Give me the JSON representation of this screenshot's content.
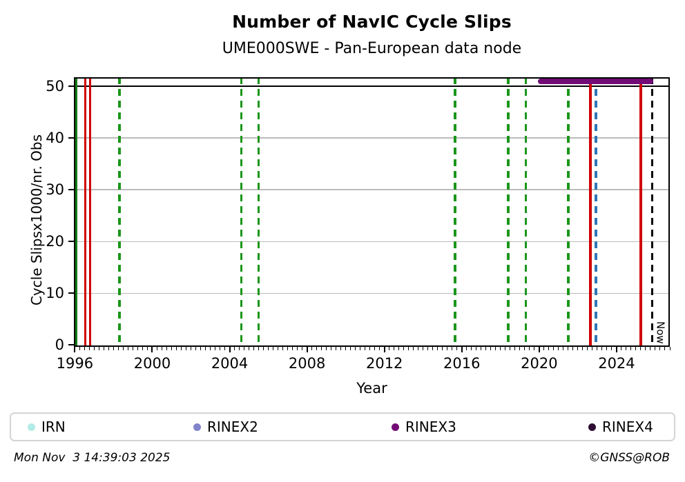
{
  "figure": {
    "title": "Number of NavIC Cycle Slips",
    "subtitle": "UME000SWE - Pan-European data node",
    "footer": {
      "left": "Mon Nov  3 14:39:03 2025",
      "right": "©GNSS@ROB"
    }
  },
  "chart_data": {
    "type": "line",
    "title": "Number of NavIC Cycle Slips",
    "subtitle": "UME000SWE - Pan-European data node",
    "xlabel": "Year",
    "ylabel": "Cycle Slipsx1000/nr. Obs",
    "xlim": [
      1995.95,
      2026.75
    ],
    "ylim": [
      -0.35,
      51.75
    ],
    "x_major_ticks": [
      1996,
      2000,
      2004,
      2008,
      2012,
      2016,
      2020,
      2024
    ],
    "x_minor_tick_step": 0.25,
    "y_major_ticks": [
      0,
      10,
      20,
      30,
      40,
      50
    ],
    "grid": {
      "horizontal": true,
      "vertical": false,
      "color": "#bbbbbb"
    },
    "cap_line": {
      "y": 50,
      "color": "#000000",
      "width": 2.5
    },
    "series": [
      {
        "name": "RINEX3",
        "color": "#720b76",
        "marker": "circle",
        "values_clamped_at": 51,
        "segments": [
          {
            "x_start": 2019.95,
            "x_end": 2025.9,
            "y": 51
          }
        ],
        "thickness": 8
      }
    ],
    "event_lines": [
      {
        "year": 1995.98,
        "color": "#d10000",
        "style": "dashed",
        "width": 3
      },
      {
        "year": 1996.07,
        "color": "#157a15",
        "style": "solid",
        "width": 3
      },
      {
        "year": 1996.55,
        "color": "#d10000",
        "style": "solid",
        "width": 3
      },
      {
        "year": 1996.8,
        "color": "#d10000",
        "style": "solid",
        "width": 3
      },
      {
        "year": 1998.3,
        "color": "#1a961a",
        "style": "dashed",
        "width": 3.5
      },
      {
        "year": 2004.6,
        "color": "#1a961a",
        "style": "dashed",
        "width": 3.5
      },
      {
        "year": 2005.5,
        "color": "#1a961a",
        "style": "dashed",
        "width": 3.5
      },
      {
        "year": 2015.65,
        "color": "#1a961a",
        "style": "dashed",
        "width": 3.5
      },
      {
        "year": 2018.4,
        "color": "#1a961a",
        "style": "dashed",
        "width": 3.5
      },
      {
        "year": 2019.3,
        "color": "#1a961a",
        "style": "dashed",
        "width": 3.5
      },
      {
        "year": 2021.5,
        "color": "#1a961a",
        "style": "dashed",
        "width": 3.5
      },
      {
        "year": 2022.65,
        "color": "#d10000",
        "style": "solid",
        "width": 3.5
      },
      {
        "year": 2022.93,
        "color": "#2f76b5",
        "style": "dashed",
        "width": 3.5
      },
      {
        "year": 2025.25,
        "color": "#d10000",
        "style": "solid",
        "width": 3.5
      }
    ],
    "now_marker": {
      "year": 2025.84,
      "label": "Now",
      "color": "#000000",
      "style": "dashed",
      "width": 2.5
    },
    "legend": {
      "position": "bottom",
      "entries": [
        {
          "label": "IRN",
          "color": "#b2ece6"
        },
        {
          "label": "RINEX2",
          "color": "#8184cb"
        },
        {
          "label": "RINEX3",
          "color": "#720b76"
        },
        {
          "label": "RINEX4",
          "color": "#2e0d33"
        }
      ]
    }
  }
}
